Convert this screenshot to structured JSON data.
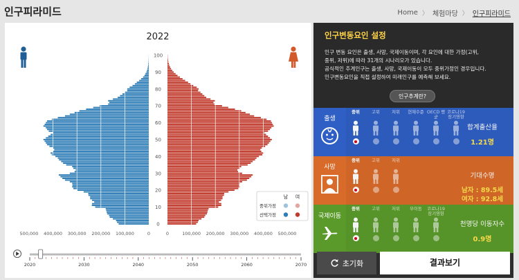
{
  "page": {
    "title": "인구피라미드"
  },
  "breadcrumb": {
    "home": "Home",
    "section": "체험마당",
    "current": "인구피라미드"
  },
  "chart": {
    "year": "2022",
    "legend": {
      "male": "남",
      "female": "여",
      "row1": "중위가정",
      "row2": "선택가정"
    },
    "colors": {
      "male": "#2e7db6",
      "female": "#c0392b",
      "male_light": "#9ec4dd",
      "female_light": "#e2a5a0"
    }
  },
  "chart_data": {
    "type": "bar",
    "title": "2022",
    "age_ticks": [
      "100",
      "90",
      "80",
      "70",
      "60",
      "50",
      "40",
      "30",
      "20",
      "10",
      "0"
    ],
    "x_ticks_left": [
      "500,000",
      "400,000",
      "300,000",
      "200,000",
      "100,000",
      "0"
    ],
    "x_ticks_right": [
      "0",
      "100,000",
      "200,000",
      "300,000",
      "400,000",
      "500,000"
    ],
    "xlim": [
      0,
      500000
    ],
    "ylim": [
      0,
      100
    ],
    "series": [
      {
        "name": "남",
        "values": [
          126000,
          133000,
          137000,
          150000,
          163000,
          166000,
          174000,
          176000,
          178000,
          180000,
          224000,
          238000,
          237000,
          228000,
          237000,
          245000,
          245000,
          252000,
          253000,
          272000,
          298000,
          315000,
          320000,
          319000,
          320000,
          330000,
          350000,
          361000,
          369000,
          376000,
          330000,
          310000,
          305000,
          315000,
          320000,
          345000,
          358000,
          366000,
          375000,
          380000,
          390000,
          405000,
          410000,
          400000,
          395000,
          400000,
          415000,
          425000,
          430000,
          435000,
          440000,
          430000,
          420000,
          410000,
          400000,
          418000,
          425000,
          430000,
          440000,
          435000,
          430000,
          425000,
          405000,
          380000,
          350000,
          330000,
          310000,
          290000,
          262000,
          232000,
          205000,
          170000,
          165000,
          170000,
          150000,
          130000,
          120000,
          110000,
          100000,
          90000,
          90000,
          80000,
          68000,
          58000,
          50000,
          40000,
          32000,
          24000,
          18000,
          14000,
          10000,
          7500,
          5500,
          4000,
          3000,
          2000,
          1400,
          900,
          600,
          400,
          300
        ]
      },
      {
        "name": "여",
        "values": [
          120000,
          127000,
          130000,
          142000,
          154000,
          158000,
          165000,
          167000,
          169000,
          172000,
          212000,
          225000,
          225000,
          215000,
          224000,
          230000,
          230000,
          236000,
          237000,
          255000,
          280000,
          296000,
          302000,
          300000,
          302000,
          312000,
          332000,
          342000,
          350000,
          356000,
          312000,
          295000,
          292000,
          302000,
          308000,
          335000,
          348000,
          356000,
          366000,
          372000,
          382000,
          396000,
          402000,
          392000,
          388000,
          394000,
          408000,
          418000,
          424000,
          430000,
          436000,
          428000,
          420000,
          412000,
          404000,
          420000,
          428000,
          434000,
          444000,
          440000,
          436000,
          432000,
          414000,
          390000,
          362000,
          344000,
          326000,
          308000,
          282000,
          254000,
          228000,
          196000,
          192000,
          198000,
          180000,
          162000,
          154000,
          146000,
          138000,
          128000,
          130000,
          122000,
          108000,
          96000,
          86000,
          74000,
          63000,
          52000,
          42000,
          34000,
          26000,
          20000,
          15000,
          11000,
          8000,
          5500,
          3800,
          2500,
          1600,
          1000,
          700
        ]
      }
    ]
  },
  "timeline": {
    "ticks": [
      "2020",
      "2030",
      "2040",
      "2050",
      "2060",
      "2070"
    ],
    "year_min": 2020,
    "year_max": 2070,
    "current_year": 2022
  },
  "settings": {
    "title": "인구변동요인 설정",
    "desc": [
      "인구 변동 요인은 출생, 사망, 국제이동이며, 각 요인에 대한 가정(고위,",
      "중위, 저위)에 따라 31개의 시나리오가 있습니다.",
      "공식적인 추계인구는 출생, 사망, 국제이동이 모두 중위가정인 경우입니다.",
      "인구변동요인을 직접 설정하여 미래인구를 예측해 보세요."
    ],
    "calc_button": "인구추계란?"
  },
  "sections": {
    "birth": {
      "label": "출생",
      "color": "#2f5fc4",
      "options": [
        "중위",
        "고위",
        "저위",
        "현재수준",
        "OECD 평균",
        "코로나19 장기영향"
      ],
      "selected": 0,
      "result_title": "합계출산율",
      "result_value": "1.21명"
    },
    "death": {
      "label": "사망",
      "color": "#d86a2a",
      "options": [
        "중위",
        "고위",
        "저위"
      ],
      "selected": 0,
      "result_title": "기대수명",
      "result_male": "남자 : 89.5세",
      "result_female": "여자 : 92.8세"
    },
    "migration": {
      "label": "국제이동",
      "color": "#5a9a2b",
      "options": [
        "중위",
        "고위",
        "저위",
        "무이동",
        "코로나19 장기영향"
      ],
      "selected": 0,
      "result_title": "천명당 이동자수",
      "result_value": "0.9명"
    }
  },
  "buttons": {
    "reset": "초기화",
    "result": "결과보기"
  }
}
